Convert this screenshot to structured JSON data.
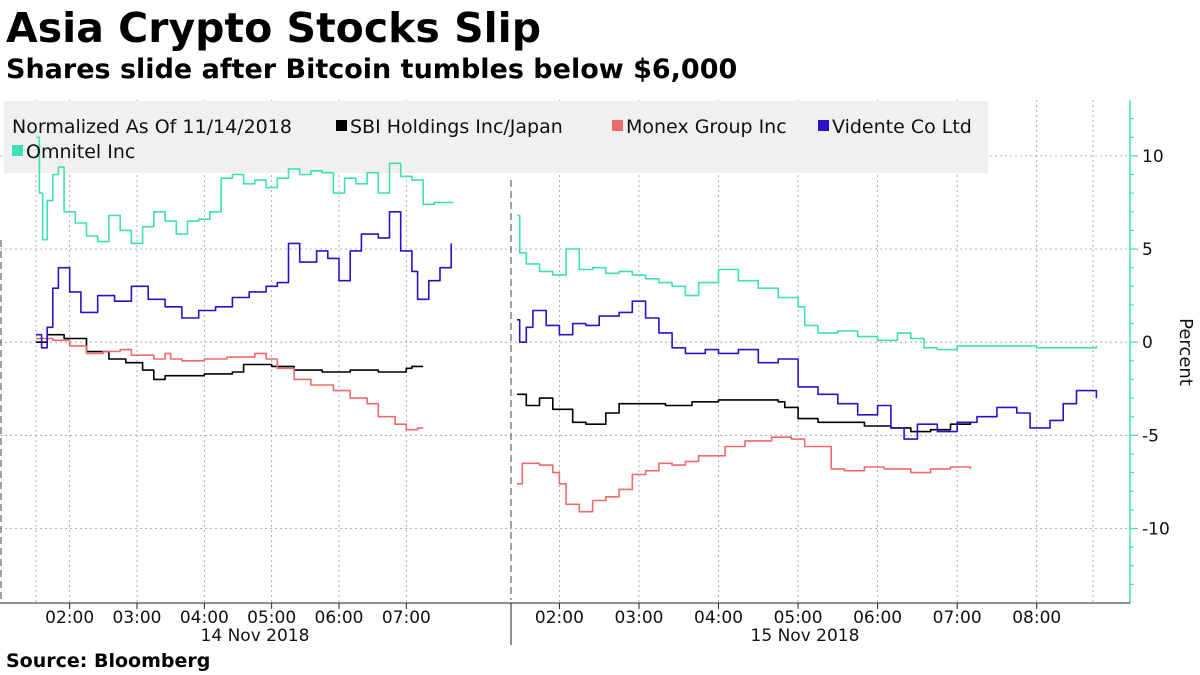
{
  "header": {
    "title": "Asia Crypto Stocks Slip",
    "subtitle": "Shares slide after Bitcoin tumbles below $6,000"
  },
  "footer": {
    "source": "Source: Bloomberg"
  },
  "colors": {
    "sbi": "#000000",
    "monex": "#ef6b6b",
    "vidente": "#2c10c8",
    "omnitel": "#3fe0b4",
    "axis_accent": "#3fe0b4",
    "grid": "#9a9a9a",
    "legend_bg": "#f0f0f0"
  },
  "chart_data": {
    "type": "line",
    "legend_title": "Normalized As Of 11/14/2018",
    "legend_position": "top-left",
    "grid": true,
    "ylabel": "Percent",
    "y_axis_side": "right",
    "ylim": [
      -14,
      13
    ],
    "y_ticks": [
      10,
      5,
      0,
      -5,
      -10
    ],
    "y_tick_labels": [
      "10",
      "5",
      "0",
      "-5",
      "-10"
    ],
    "x_ticks": [
      "02:00",
      "03:00",
      "04:00",
      "05:00",
      "06:00",
      "07:00",
      "02:00",
      "03:00",
      "04:00",
      "05:00",
      "06:00",
      "07:00",
      "08:00"
    ],
    "day_labels": [
      "14 Nov 2018",
      "15 Nov 2018"
    ],
    "sessions": [
      {
        "date": "14 Nov 2018",
        "xlim": [
          "01:30",
          "07:45"
        ]
      },
      {
        "date": "15 Nov 2018",
        "xlim": [
          "01:25",
          "08:50"
        ]
      }
    ],
    "series": [
      {
        "name": "SBI Holdings Inc/Japan",
        "color_key": "sbi",
        "day1": [
          [
            "01:30",
            0.0
          ],
          [
            "01:40",
            0.4
          ],
          [
            "01:55",
            0.2
          ],
          [
            "02:15",
            -0.5
          ],
          [
            "02:35",
            -0.9
          ],
          [
            "02:50",
            -1.1
          ],
          [
            "03:05",
            -1.5
          ],
          [
            "03:15",
            -2.0
          ],
          [
            "03:25",
            -1.8
          ],
          [
            "04:00",
            -1.7
          ],
          [
            "04:25",
            -1.6
          ],
          [
            "04:35",
            -1.2
          ],
          [
            "05:00",
            -1.3
          ],
          [
            "05:20",
            -1.5
          ],
          [
            "05:45",
            -1.6
          ],
          [
            "06:10",
            -1.5
          ],
          [
            "06:35",
            -1.6
          ],
          [
            "07:00",
            -1.4
          ],
          [
            "07:05",
            -1.3
          ],
          [
            "07:15",
            -1.3
          ]
        ],
        "day2": [
          [
            "01:28",
            -2.8
          ],
          [
            "01:35",
            -3.4
          ],
          [
            "01:45",
            -3.0
          ],
          [
            "01:55",
            -3.6
          ],
          [
            "02:10",
            -4.3
          ],
          [
            "02:20",
            -4.4
          ],
          [
            "02:35",
            -3.8
          ],
          [
            "02:45",
            -3.3
          ],
          [
            "03:00",
            -3.3
          ],
          [
            "03:20",
            -3.4
          ],
          [
            "03:40",
            -3.2
          ],
          [
            "04:00",
            -3.1
          ],
          [
            "04:30",
            -3.1
          ],
          [
            "04:45",
            -3.2
          ],
          [
            "04:50",
            -3.5
          ],
          [
            "05:00",
            -4.1
          ],
          [
            "05:15",
            -4.3
          ],
          [
            "05:30",
            -4.3
          ],
          [
            "05:50",
            -4.5
          ],
          [
            "06:10",
            -4.6
          ],
          [
            "06:25",
            -4.8
          ],
          [
            "06:40",
            -4.7
          ],
          [
            "06:55",
            -4.4
          ],
          [
            "07:10",
            -4.3
          ]
        ]
      },
      {
        "name": "Monex Group Inc",
        "color_key": "monex",
        "day1": [
          [
            "01:30",
            0.2
          ],
          [
            "01:45",
            0.1
          ],
          [
            "02:00",
            -0.2
          ],
          [
            "02:15",
            -0.6
          ],
          [
            "02:30",
            -0.5
          ],
          [
            "02:45",
            -0.4
          ],
          [
            "02:55",
            -0.7
          ],
          [
            "03:05",
            -0.7
          ],
          [
            "03:15",
            -0.9
          ],
          [
            "03:25",
            -0.6
          ],
          [
            "03:30",
            -0.9
          ],
          [
            "03:40",
            -1.0
          ],
          [
            "04:00",
            -0.9
          ],
          [
            "04:20",
            -0.8
          ],
          [
            "04:45",
            -0.6
          ],
          [
            "04:55",
            -0.9
          ],
          [
            "05:05",
            -1.4
          ],
          [
            "05:20",
            -2.0
          ],
          [
            "05:35",
            -2.3
          ],
          [
            "05:55",
            -2.6
          ],
          [
            "06:10",
            -3.0
          ],
          [
            "06:25",
            -3.3
          ],
          [
            "06:35",
            -4.0
          ],
          [
            "06:50",
            -4.4
          ],
          [
            "07:00",
            -4.7
          ],
          [
            "07:10",
            -4.6
          ],
          [
            "07:15",
            -4.6
          ]
        ],
        "day2": [
          [
            "01:28",
            -7.6
          ],
          [
            "01:32",
            -6.5
          ],
          [
            "01:45",
            -6.6
          ],
          [
            "01:55",
            -7.0
          ],
          [
            "02:00",
            -7.6
          ],
          [
            "02:05",
            -8.7
          ],
          [
            "02:15",
            -9.1
          ],
          [
            "02:25",
            -8.5
          ],
          [
            "02:35",
            -8.3
          ],
          [
            "02:45",
            -7.9
          ],
          [
            "02:55",
            -7.1
          ],
          [
            "03:05",
            -6.9
          ],
          [
            "03:15",
            -6.5
          ],
          [
            "03:25",
            -6.6
          ],
          [
            "03:35",
            -6.4
          ],
          [
            "03:45",
            -6.1
          ],
          [
            "04:05",
            -5.6
          ],
          [
            "04:20",
            -5.3
          ],
          [
            "04:40",
            -5.1
          ],
          [
            "04:55",
            -5.2
          ],
          [
            "05:05",
            -5.6
          ],
          [
            "05:15",
            -5.6
          ],
          [
            "05:25",
            -6.8
          ],
          [
            "05:35",
            -6.9
          ],
          [
            "05:50",
            -6.7
          ],
          [
            "06:05",
            -6.8
          ],
          [
            "06:25",
            -7.0
          ],
          [
            "06:40",
            -6.8
          ],
          [
            "06:55",
            -6.7
          ],
          [
            "07:10",
            -6.8
          ]
        ]
      },
      {
        "name": "Vidente Co Ltd",
        "color_key": "vidente",
        "day1": [
          [
            "01:30",
            0.4
          ],
          [
            "01:35",
            -0.3
          ],
          [
            "01:40",
            0.8
          ],
          [
            "01:45",
            2.9
          ],
          [
            "01:50",
            4.0
          ],
          [
            "02:00",
            2.7
          ],
          [
            "02:10",
            1.6
          ],
          [
            "02:25",
            2.5
          ],
          [
            "02:40",
            2.2
          ],
          [
            "02:55",
            3.0
          ],
          [
            "03:10",
            2.3
          ],
          [
            "03:25",
            1.9
          ],
          [
            "03:40",
            1.3
          ],
          [
            "03:55",
            1.7
          ],
          [
            "04:10",
            1.9
          ],
          [
            "04:25",
            2.4
          ],
          [
            "04:40",
            2.7
          ],
          [
            "04:55",
            3.0
          ],
          [
            "05:05",
            3.2
          ],
          [
            "05:15",
            5.3
          ],
          [
            "05:25",
            4.3
          ],
          [
            "05:40",
            4.9
          ],
          [
            "05:50",
            4.5
          ],
          [
            "06:00",
            3.3
          ],
          [
            "06:10",
            4.9
          ],
          [
            "06:20",
            5.8
          ],
          [
            "06:35",
            5.6
          ],
          [
            "06:45",
            7.0
          ],
          [
            "06:55",
            4.9
          ],
          [
            "07:05",
            3.8
          ],
          [
            "07:10",
            2.3
          ],
          [
            "07:20",
            3.3
          ],
          [
            "07:30",
            4.0
          ],
          [
            "07:40",
            5.3
          ]
        ],
        "day2": [
          [
            "01:28",
            1.2
          ],
          [
            "01:30",
            0.0
          ],
          [
            "01:35",
            0.8
          ],
          [
            "01:40",
            1.7
          ],
          [
            "01:50",
            0.9
          ],
          [
            "02:00",
            0.4
          ],
          [
            "02:10",
            1.0
          ],
          [
            "02:20",
            0.9
          ],
          [
            "02:30",
            1.4
          ],
          [
            "02:45",
            1.6
          ],
          [
            "02:55",
            2.2
          ],
          [
            "03:05",
            1.3
          ],
          [
            "03:15",
            0.5
          ],
          [
            "03:25",
            -0.3
          ],
          [
            "03:35",
            -0.6
          ],
          [
            "03:50",
            -0.4
          ],
          [
            "04:00",
            -0.6
          ],
          [
            "04:15",
            -0.4
          ],
          [
            "04:30",
            -1.1
          ],
          [
            "04:45",
            -0.9
          ],
          [
            "05:00",
            -2.4
          ],
          [
            "05:15",
            -2.8
          ],
          [
            "05:30",
            -3.3
          ],
          [
            "05:45",
            -3.9
          ],
          [
            "06:00",
            -3.4
          ],
          [
            "06:10",
            -4.6
          ],
          [
            "06:20",
            -5.2
          ],
          [
            "06:30",
            -4.4
          ],
          [
            "06:45",
            -4.8
          ],
          [
            "07:00",
            -4.3
          ],
          [
            "07:15",
            -4.0
          ],
          [
            "07:30",
            -3.5
          ],
          [
            "07:45",
            -3.8
          ],
          [
            "07:55",
            -4.6
          ],
          [
            "08:10",
            -4.2
          ],
          [
            "08:20",
            -3.3
          ],
          [
            "08:30",
            -2.6
          ],
          [
            "08:45",
            -3.0
          ]
        ]
      },
      {
        "name": "Omnitel Inc",
        "color_key": "omnitel",
        "day1": [
          [
            "01:30",
            11.0
          ],
          [
            "01:33",
            8.0
          ],
          [
            "01:36",
            5.5
          ],
          [
            "01:40",
            7.6
          ],
          [
            "01:45",
            9.0
          ],
          [
            "01:50",
            9.4
          ],
          [
            "01:55",
            7.0
          ],
          [
            "02:05",
            6.4
          ],
          [
            "02:15",
            5.7
          ],
          [
            "02:25",
            5.4
          ],
          [
            "02:35",
            6.8
          ],
          [
            "02:45",
            6.0
          ],
          [
            "02:55",
            5.3
          ],
          [
            "03:05",
            6.2
          ],
          [
            "03:15",
            7.0
          ],
          [
            "03:25",
            6.5
          ],
          [
            "03:35",
            5.8
          ],
          [
            "03:45",
            6.5
          ],
          [
            "03:55",
            6.6
          ],
          [
            "04:05",
            7.0
          ],
          [
            "04:15",
            8.8
          ],
          [
            "04:25",
            9.0
          ],
          [
            "04:35",
            8.5
          ],
          [
            "04:45",
            8.7
          ],
          [
            "04:55",
            8.3
          ],
          [
            "05:05",
            8.8
          ],
          [
            "05:15",
            9.3
          ],
          [
            "05:25",
            9.0
          ],
          [
            "05:35",
            9.2
          ],
          [
            "05:45",
            9.1
          ],
          [
            "05:55",
            8.0
          ],
          [
            "06:05",
            8.8
          ],
          [
            "06:15",
            8.5
          ],
          [
            "06:25",
            9.1
          ],
          [
            "06:35",
            8.0
          ],
          [
            "06:45",
            9.6
          ],
          [
            "06:55",
            8.9
          ],
          [
            "07:05",
            8.7
          ],
          [
            "07:15",
            7.4
          ],
          [
            "07:25",
            7.5
          ],
          [
            "07:35",
            7.5
          ],
          [
            "07:42",
            7.5
          ]
        ],
        "day2": [
          [
            "01:28",
            6.8
          ],
          [
            "01:30",
            4.8
          ],
          [
            "01:35",
            4.2
          ],
          [
            "01:45",
            3.8
          ],
          [
            "01:55",
            3.6
          ],
          [
            "02:05",
            5.0
          ],
          [
            "02:15",
            3.9
          ],
          [
            "02:25",
            4.0
          ],
          [
            "02:35",
            3.7
          ],
          [
            "02:45",
            3.8
          ],
          [
            "02:55",
            3.6
          ],
          [
            "03:05",
            3.4
          ],
          [
            "03:15",
            3.2
          ],
          [
            "03:25",
            3.0
          ],
          [
            "03:35",
            2.5
          ],
          [
            "03:45",
            3.2
          ],
          [
            "04:00",
            3.9
          ],
          [
            "04:15",
            3.3
          ],
          [
            "04:30",
            2.9
          ],
          [
            "04:45",
            2.4
          ],
          [
            "05:00",
            1.9
          ],
          [
            "05:05",
            0.9
          ],
          [
            "05:15",
            0.5
          ],
          [
            "05:30",
            0.6
          ],
          [
            "05:45",
            0.3
          ],
          [
            "06:00",
            0.1
          ],
          [
            "06:15",
            0.5
          ],
          [
            "06:25",
            0.2
          ],
          [
            "06:35",
            -0.3
          ],
          [
            "06:45",
            -0.4
          ],
          [
            "07:00",
            -0.2
          ],
          [
            "07:30",
            -0.2
          ],
          [
            "08:00",
            -0.3
          ],
          [
            "08:45",
            -0.2
          ]
        ]
      }
    ]
  }
}
